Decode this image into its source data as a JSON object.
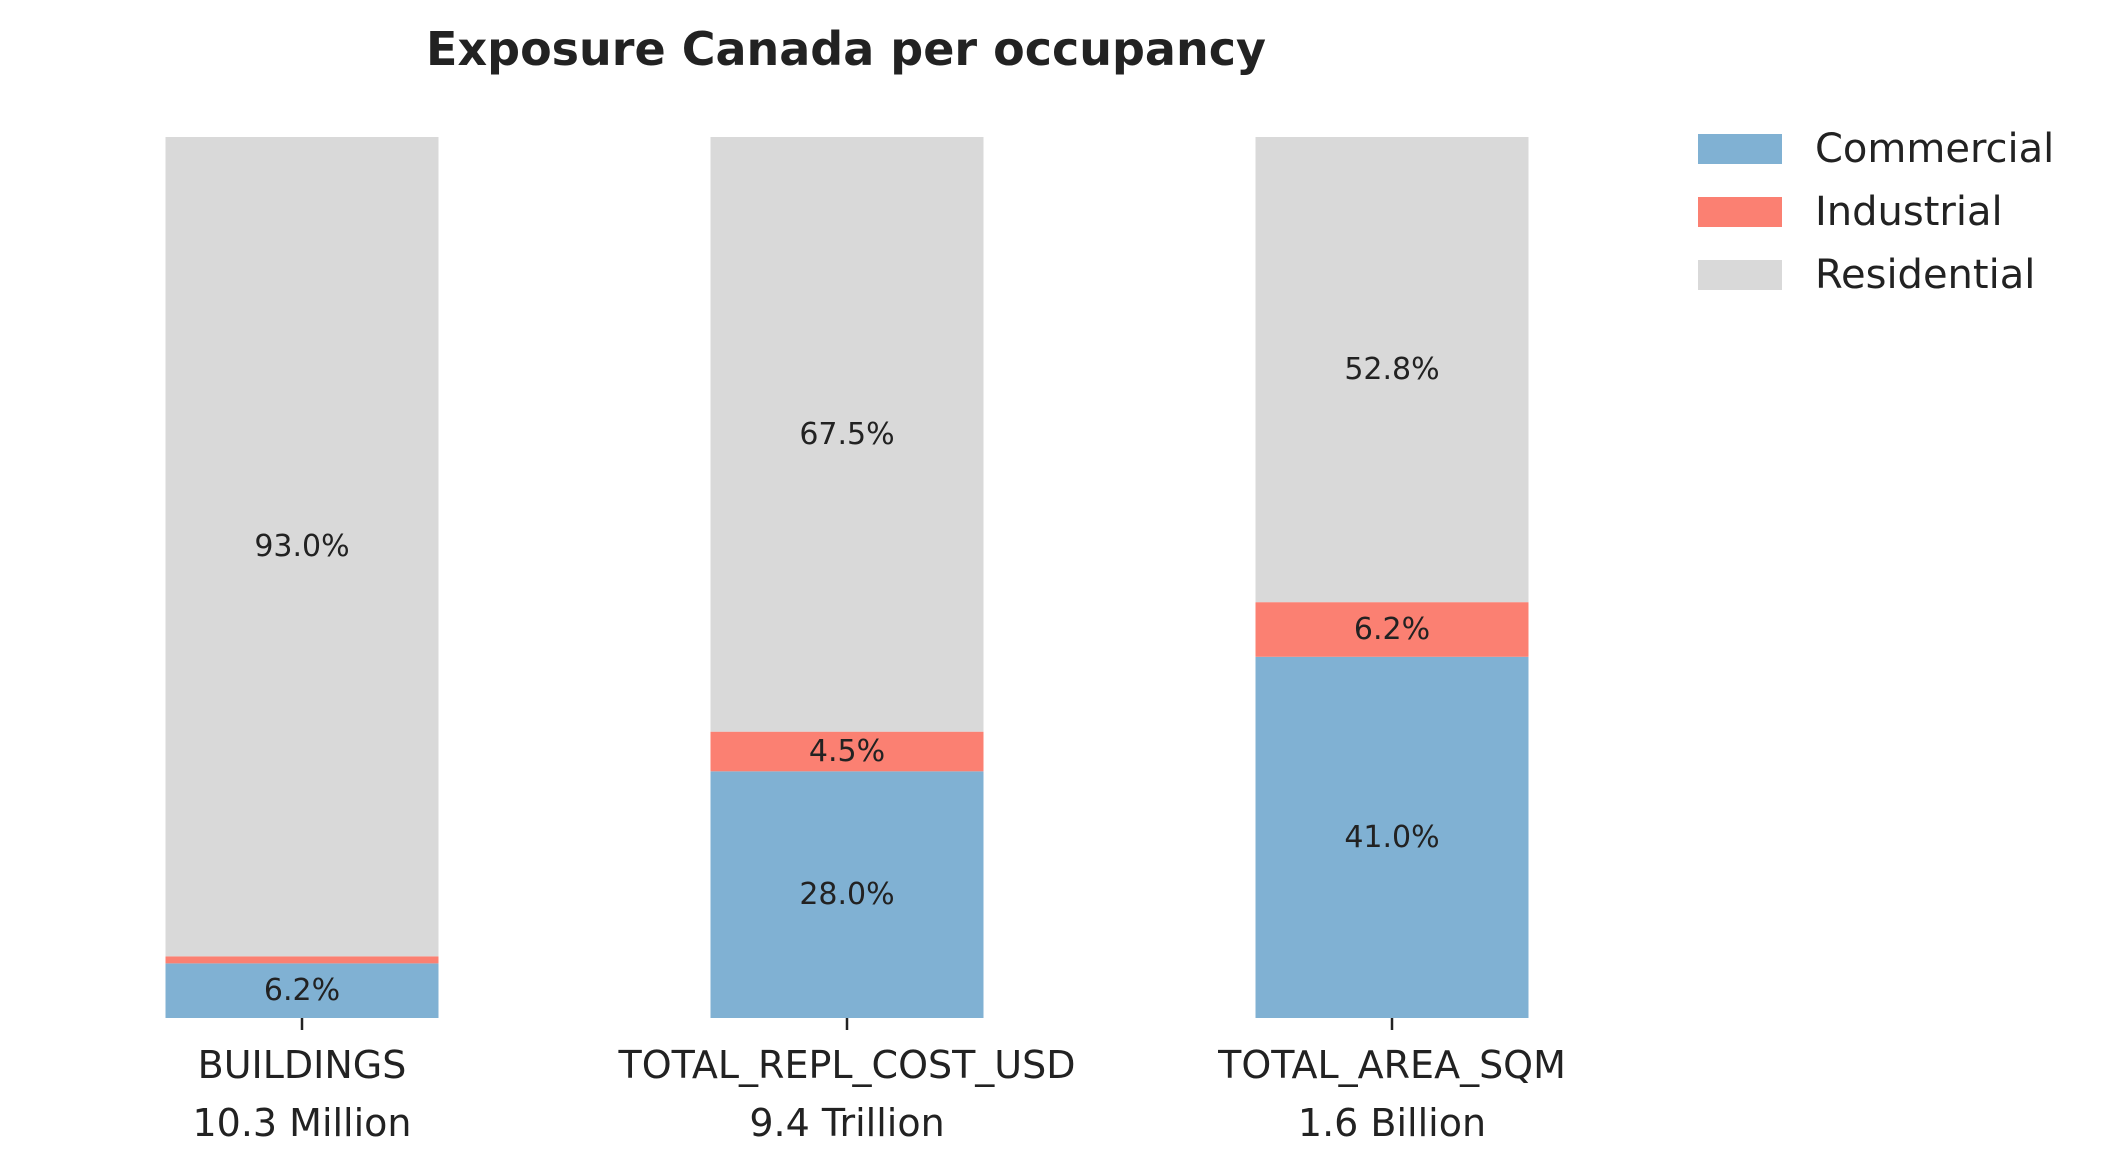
{
  "chart_data": {
    "type": "bar",
    "stacked": true,
    "title": "Exposure Canada per occupancy",
    "categories": [
      "BUILDINGS",
      "TOTAL_REPL_COST_USD",
      "TOTAL_AREA_SQM"
    ],
    "category_totals": [
      "10.3 Million",
      "9.4 Trillion",
      "1.6 Billion"
    ],
    "ylim": [
      0,
      100
    ],
    "grid": false,
    "legend_position": "top-right",
    "series": [
      {
        "name": "Commercial",
        "color": "#80b1d3",
        "values": [
          6.2,
          28.0,
          41.0
        ],
        "labels": [
          "6.2%",
          "28.0%",
          "41.0%"
        ]
      },
      {
        "name": "Industrial",
        "color": "#fb8072",
        "values": [
          0.8,
          4.5,
          6.2
        ],
        "labels": [
          "",
          "4.5%",
          "6.2%"
        ]
      },
      {
        "name": "Residential",
        "color": "#d9d9d9",
        "values": [
          93.0,
          67.5,
          52.8
        ],
        "labels": [
          "93.0%",
          "67.5%",
          "52.8%"
        ]
      }
    ]
  }
}
